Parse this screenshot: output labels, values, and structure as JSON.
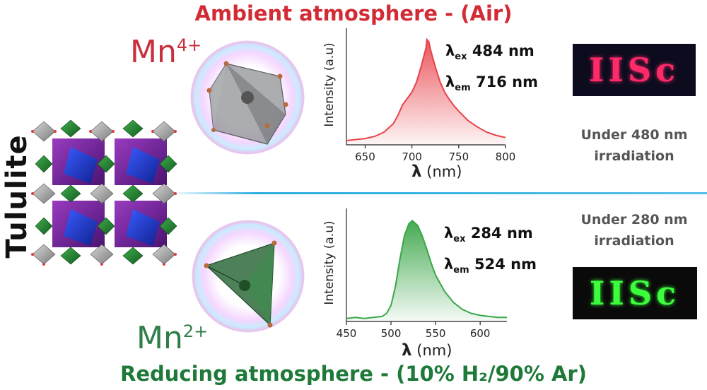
{
  "titles": {
    "top": "Ambient atmosphere - (Air)",
    "bottom": "Reducing atmosphere - (10% H₂/90% Ar)"
  },
  "side_label": "Tululite",
  "ions": {
    "top": {
      "base": "Mn",
      "charge": "4+"
    },
    "bottom": {
      "base": "Mn",
      "charge": "2+"
    }
  },
  "annotations": {
    "top": {
      "ex_symbol": "λ",
      "ex_sub": "ex",
      "ex_value": "484 nm",
      "em_symbol": "λ",
      "em_sub": "em",
      "em_value": "716 nm"
    },
    "bottom": {
      "ex_symbol": "λ",
      "ex_sub": "ex",
      "ex_value": "284 nm",
      "em_symbol": "λ",
      "em_sub": "em",
      "em_value": "524 nm"
    }
  },
  "irradiation": {
    "top": {
      "line1": "Under 480 nm",
      "line2": "irradiation"
    },
    "bottom": {
      "line1": "Under 280 nm",
      "line2": "irradiation"
    }
  },
  "samples": {
    "top_text": "IISc",
    "bottom_text": "IISc",
    "top_color": "#ff2a6a",
    "bottom_color": "#3cff3c"
  },
  "colors": {
    "red": "#e8434b",
    "green": "#3aa648",
    "divider": "#2aaee0"
  },
  "chart_data": [
    {
      "type": "area",
      "ylabel": "Intensity (a.u)",
      "xlabel_symbol": "λ",
      "xlabel_unit": "(nm)",
      "xlim": [
        630,
        800
      ],
      "ylim": [
        0,
        1.08
      ],
      "xticks": [
        650,
        700,
        750,
        800
      ],
      "x": [
        630,
        640,
        650,
        660,
        670,
        680,
        685,
        690,
        695,
        700,
        705,
        710,
        715,
        716,
        718,
        720,
        725,
        730,
        735,
        740,
        745,
        750,
        760,
        770,
        780,
        790,
        800
      ],
      "values": [
        0.04,
        0.05,
        0.06,
        0.08,
        0.12,
        0.2,
        0.28,
        0.38,
        0.44,
        0.5,
        0.6,
        0.75,
        0.92,
        1.0,
        0.98,
        0.9,
        0.74,
        0.6,
        0.5,
        0.43,
        0.37,
        0.32,
        0.23,
        0.17,
        0.12,
        0.09,
        0.07
      ]
    },
    {
      "type": "area",
      "ylabel": "Intensity (a.u)",
      "xlabel_symbol": "λ",
      "xlabel_unit": "(nm)",
      "xlim": [
        450,
        630
      ],
      "ylim": [
        0,
        1.1
      ],
      "xticks": [
        450,
        500,
        550,
        600
      ],
      "x": [
        450,
        460,
        470,
        480,
        490,
        495,
        500,
        505,
        510,
        515,
        520,
        524,
        530,
        535,
        540,
        545,
        550,
        560,
        570,
        580,
        590,
        600,
        610,
        620,
        630
      ],
      "values": [
        0.03,
        0.04,
        0.03,
        0.04,
        0.05,
        0.08,
        0.16,
        0.35,
        0.62,
        0.85,
        0.97,
        1.0,
        0.95,
        0.85,
        0.72,
        0.58,
        0.46,
        0.3,
        0.19,
        0.12,
        0.08,
        0.06,
        0.05,
        0.04,
        0.04
      ]
    }
  ]
}
